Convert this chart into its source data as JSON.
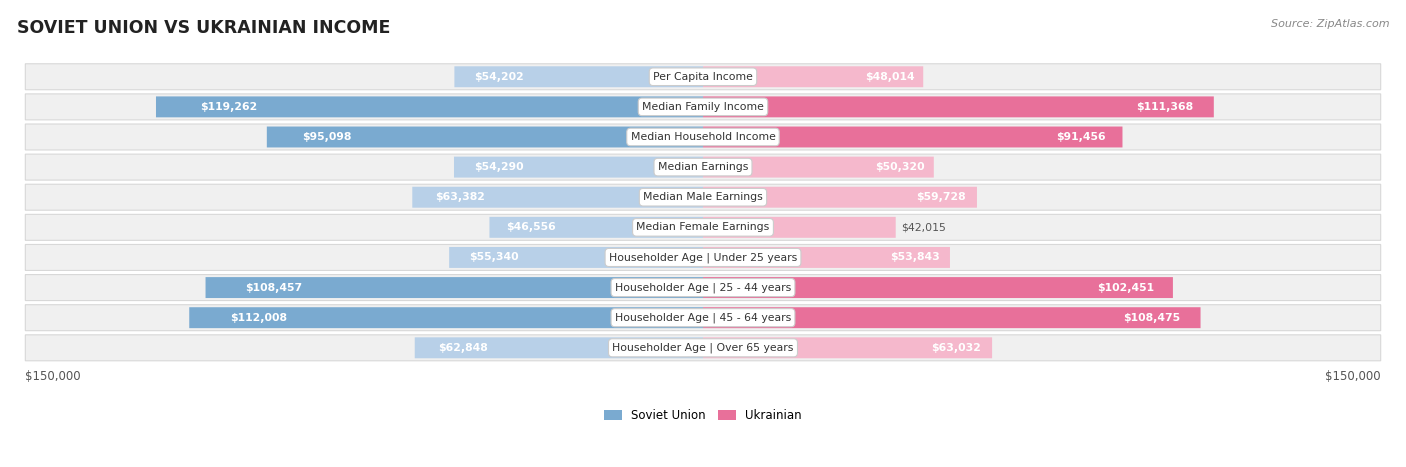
{
  "title": "SOVIET UNION VS UKRAINIAN INCOME",
  "source": "Source: ZipAtlas.com",
  "categories": [
    "Per Capita Income",
    "Median Family Income",
    "Median Household Income",
    "Median Earnings",
    "Median Male Earnings",
    "Median Female Earnings",
    "Householder Age | Under 25 years",
    "Householder Age | 25 - 44 years",
    "Householder Age | 45 - 64 years",
    "Householder Age | Over 65 years"
  ],
  "soviet_values": [
    54202,
    119262,
    95098,
    54290,
    63382,
    46556,
    55340,
    108457,
    112008,
    62848
  ],
  "ukrainian_values": [
    48014,
    111368,
    91456,
    50320,
    59728,
    42015,
    53843,
    102451,
    108475,
    63032
  ],
  "max_value": 150000,
  "soviet_bar_light": "#b8d0e8",
  "soviet_bar_dark": "#7aaad0",
  "ukrainian_bar_light": "#f5b8cc",
  "ukrainian_bar_dark": "#e8709a",
  "row_bg": "#f0f0f0",
  "row_border": "#d8d8d8",
  "center_label_bg": "#ffffff",
  "center_label_border": "#cccccc",
  "title_color": "#222222",
  "value_inside_color": "#ffffff",
  "value_outside_color": "#555555",
  "legend_soviet_color": "#7aaad0",
  "legend_ukrainian_color": "#e8709a",
  "inside_threshold": 0.3
}
